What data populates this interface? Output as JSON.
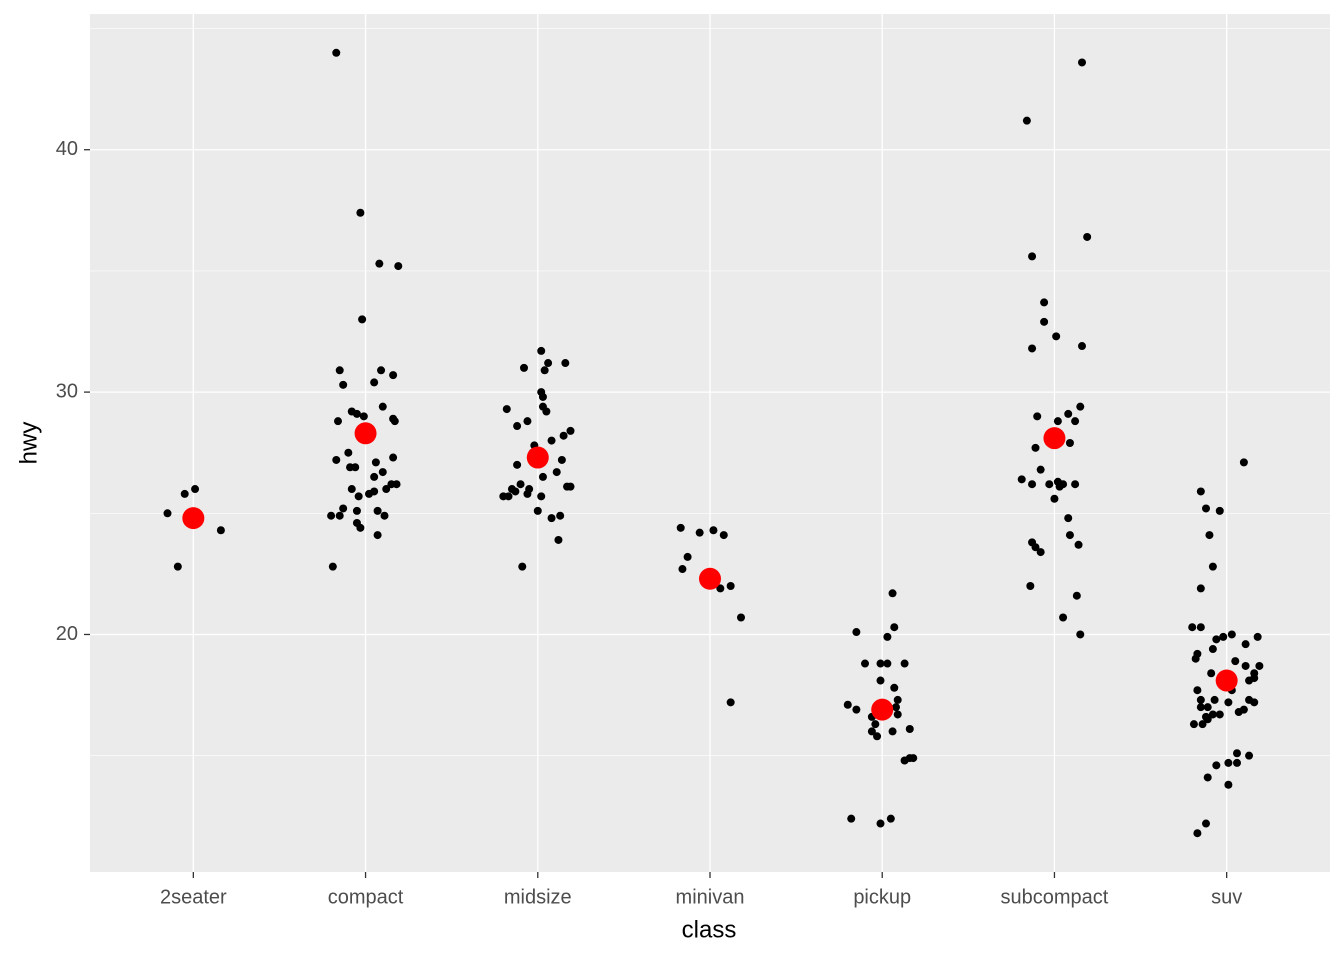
{
  "chart_data": {
    "type": "scatter",
    "x_label": "class",
    "y_label": "hwy",
    "categories": [
      "2seater",
      "compact",
      "midsize",
      "minivan",
      "pickup",
      "subcompact",
      "suv"
    ],
    "xlim": [
      0.4,
      7.6
    ],
    "ylim": [
      10.2,
      45.6
    ],
    "yticks": [
      20,
      30,
      40
    ],
    "yminor": [
      15,
      25,
      35,
      45
    ],
    "grid": true,
    "series": [
      {
        "color": "#000000",
        "x": [
          0.85,
          0.95,
          1.01,
          1.16,
          0.91,
          1.83,
          1.97,
          2.08,
          2.19,
          1.98,
          1.85,
          2.09,
          2.16,
          1.87,
          2.05,
          2.1,
          1.92,
          1.95,
          1.99,
          1.84,
          2.16,
          2.17,
          1.9,
          1.83,
          2.16,
          2.06,
          1.91,
          1.94,
          2.1,
          2.05,
          2.18,
          2.15,
          1.92,
          2.12,
          2.05,
          2.02,
          1.96,
          1.87,
          2.07,
          1.8,
          1.95,
          1.85,
          2.11,
          1.95,
          1.97,
          2.07,
          1.81,
          3.02,
          3.16,
          3.06,
          2.92,
          3.04,
          3.02,
          3.03,
          2.82,
          3.03,
          3.05,
          2.94,
          2.88,
          3.19,
          3.15,
          3.08,
          2.98,
          2.97,
          3.14,
          2.88,
          3.11,
          3.03,
          2.9,
          3.17,
          3.19,
          2.95,
          2.85,
          2.87,
          2.8,
          2.94,
          3.02,
          2.83,
          3.0,
          3.13,
          3.08,
          3.12,
          2.91,
          3.83,
          4.02,
          3.94,
          4.08,
          3.87,
          3.84,
          4.06,
          4.12,
          4.18,
          4.12,
          5.06,
          5.07,
          4.85,
          5.03,
          4.9,
          4.99,
          5.03,
          5.13,
          4.99,
          5.07,
          5.09,
          4.8,
          4.85,
          5.08,
          4.94,
          5.09,
          4.96,
          5.16,
          4.94,
          4.97,
          5.06,
          5.13,
          5.16,
          5.18,
          4.82,
          5.05,
          4.99,
          6.16,
          5.84,
          6.19,
          5.87,
          5.94,
          5.94,
          6.01,
          5.87,
          6.16,
          6.15,
          6.08,
          5.9,
          6.12,
          6.02,
          6.09,
          5.89,
          5.92,
          5.81,
          5.87,
          6.02,
          6.05,
          6.12,
          6.03,
          5.97,
          6.0,
          6.08,
          6.09,
          5.87,
          5.89,
          5.92,
          6.14,
          5.86,
          6.13,
          6.05,
          6.15,
          7.1,
          6.85,
          6.88,
          6.96,
          6.9,
          6.92,
          6.85,
          6.8,
          6.85,
          6.98,
          7.18,
          6.94,
          7.03,
          7.11,
          6.92,
          6.83,
          6.82,
          7.05,
          7.11,
          7.19,
          6.91,
          7.16,
          7.13,
          7.16,
          6.83,
          7.03,
          7.13,
          7.16,
          6.85,
          6.93,
          7.01,
          6.89,
          6.85,
          7.07,
          7.1,
          6.96,
          6.92,
          6.88,
          6.81,
          6.86,
          6.89,
          6.89,
          7.13,
          7.06,
          7.01,
          7.06,
          6.94,
          7.01,
          6.88,
          6.83
        ],
        "y": [
          25.0,
          25.8,
          26.0,
          24.3,
          22.8,
          44.0,
          37.4,
          35.3,
          35.2,
          33.0,
          30.9,
          30.9,
          30.7,
          30.3,
          30.4,
          29.4,
          29.2,
          29.1,
          29.0,
          28.8,
          28.9,
          28.8,
          27.5,
          27.2,
          27.3,
          27.1,
          26.9,
          26.9,
          26.7,
          26.5,
          26.2,
          26.2,
          26.0,
          26.0,
          25.9,
          25.8,
          25.7,
          25.2,
          25.1,
          24.9,
          25.1,
          24.9,
          24.9,
          24.6,
          24.4,
          24.1,
          22.8,
          31.7,
          31.2,
          31.2,
          31.0,
          30.9,
          30.0,
          29.8,
          29.3,
          29.4,
          29.2,
          28.8,
          28.6,
          28.4,
          28.2,
          28.0,
          27.8,
          27.5,
          27.2,
          27.0,
          26.7,
          26.5,
          26.2,
          26.1,
          26.1,
          26.0,
          26.0,
          25.9,
          25.7,
          25.8,
          25.7,
          25.7,
          25.1,
          24.9,
          24.8,
          23.9,
          22.8,
          24.4,
          24.3,
          24.2,
          24.1,
          23.2,
          22.7,
          21.9,
          22.0,
          20.7,
          17.2,
          21.7,
          20.3,
          20.1,
          19.9,
          18.8,
          18.8,
          18.8,
          18.8,
          18.1,
          17.8,
          17.3,
          17.1,
          16.9,
          17.0,
          16.6,
          16.7,
          16.3,
          16.1,
          16.0,
          15.8,
          16.0,
          14.8,
          14.9,
          14.9,
          12.4,
          12.4,
          12.2,
          43.6,
          41.2,
          36.4,
          35.6,
          33.7,
          32.9,
          32.3,
          31.8,
          31.9,
          29.4,
          29.1,
          29.0,
          28.8,
          28.8,
          27.9,
          27.7,
          26.8,
          26.4,
          26.2,
          26.3,
          26.2,
          26.2,
          26.1,
          26.2,
          25.6,
          24.8,
          24.1,
          23.8,
          23.6,
          23.4,
          23.7,
          22.0,
          21.6,
          20.7,
          20.0,
          27.1,
          25.9,
          25.2,
          25.1,
          24.1,
          22.8,
          21.9,
          20.3,
          20.3,
          19.9,
          19.9,
          19.8,
          20.0,
          19.6,
          19.4,
          19.2,
          19.0,
          18.9,
          18.7,
          18.7,
          18.4,
          18.4,
          18.1,
          18.2,
          17.7,
          17.7,
          17.3,
          17.2,
          17.3,
          17.3,
          17.2,
          17.0,
          17.0,
          16.8,
          16.9,
          16.7,
          16.7,
          16.6,
          16.3,
          16.3,
          16.5,
          14.1,
          15.0,
          15.1,
          14.7,
          14.7,
          14.6,
          13.8,
          12.2,
          11.8
        ]
      },
      {
        "color": "#ff0000",
        "x": [
          1,
          2,
          3,
          4,
          5,
          6,
          7
        ],
        "y": [
          24.8,
          28.3,
          27.3,
          22.3,
          16.9,
          28.1,
          18.1
        ]
      }
    ]
  }
}
